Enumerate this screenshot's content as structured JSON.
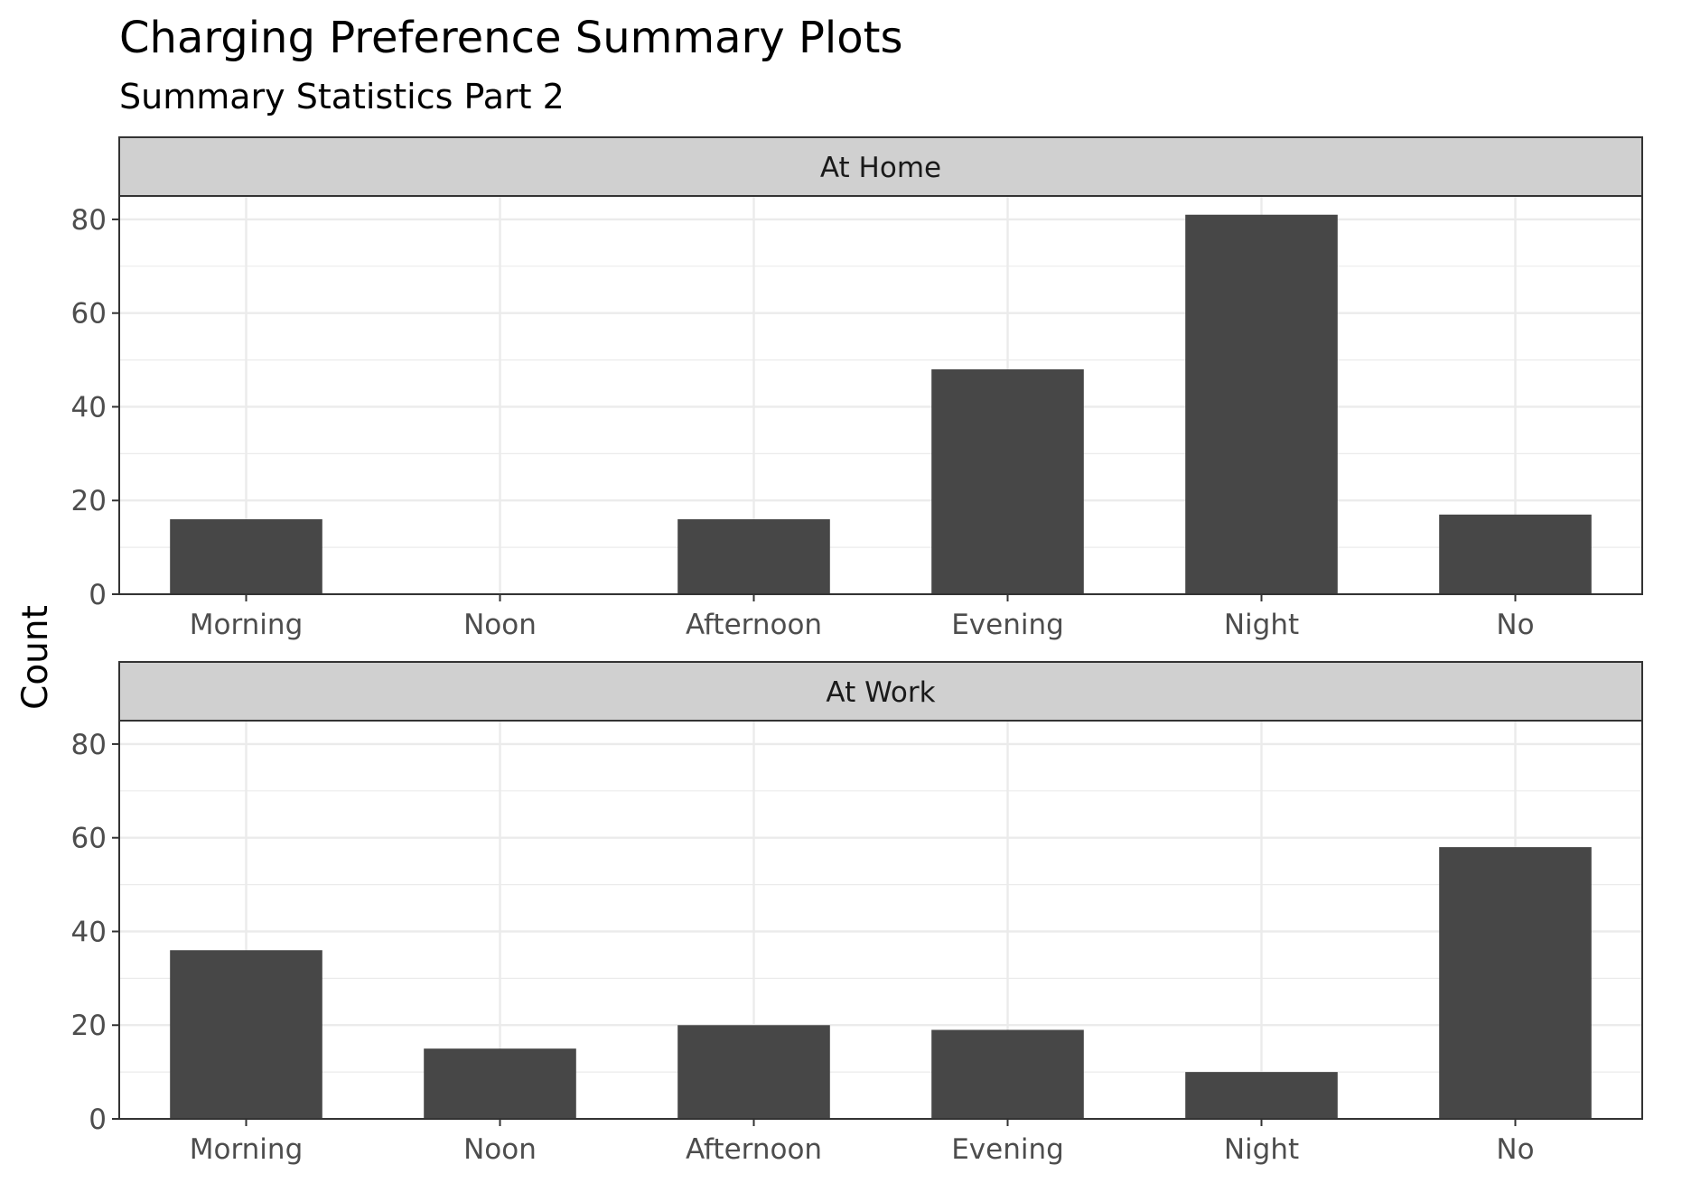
{
  "chart_data": {
    "type": "bar",
    "title": "Charging Preference Summary Plots",
    "subtitle": "Summary Statistics Part 2",
    "xlabel": "",
    "ylabel": "Count",
    "ylim": [
      0,
      85
    ],
    "yticks": [
      0,
      20,
      40,
      60,
      80
    ],
    "grid": true,
    "bar_color": "#474747",
    "strip_color": "#d0d0d0",
    "grid_color": "#ebebeb",
    "categories": [
      "Morning",
      "Noon",
      "Afternoon",
      "Evening",
      "Night",
      "No"
    ],
    "facets": [
      {
        "label": "At Home",
        "values": [
          16,
          0,
          16,
          48,
          81,
          17
        ]
      },
      {
        "label": "At Work",
        "values": [
          36,
          15,
          20,
          19,
          10,
          58
        ]
      }
    ]
  }
}
